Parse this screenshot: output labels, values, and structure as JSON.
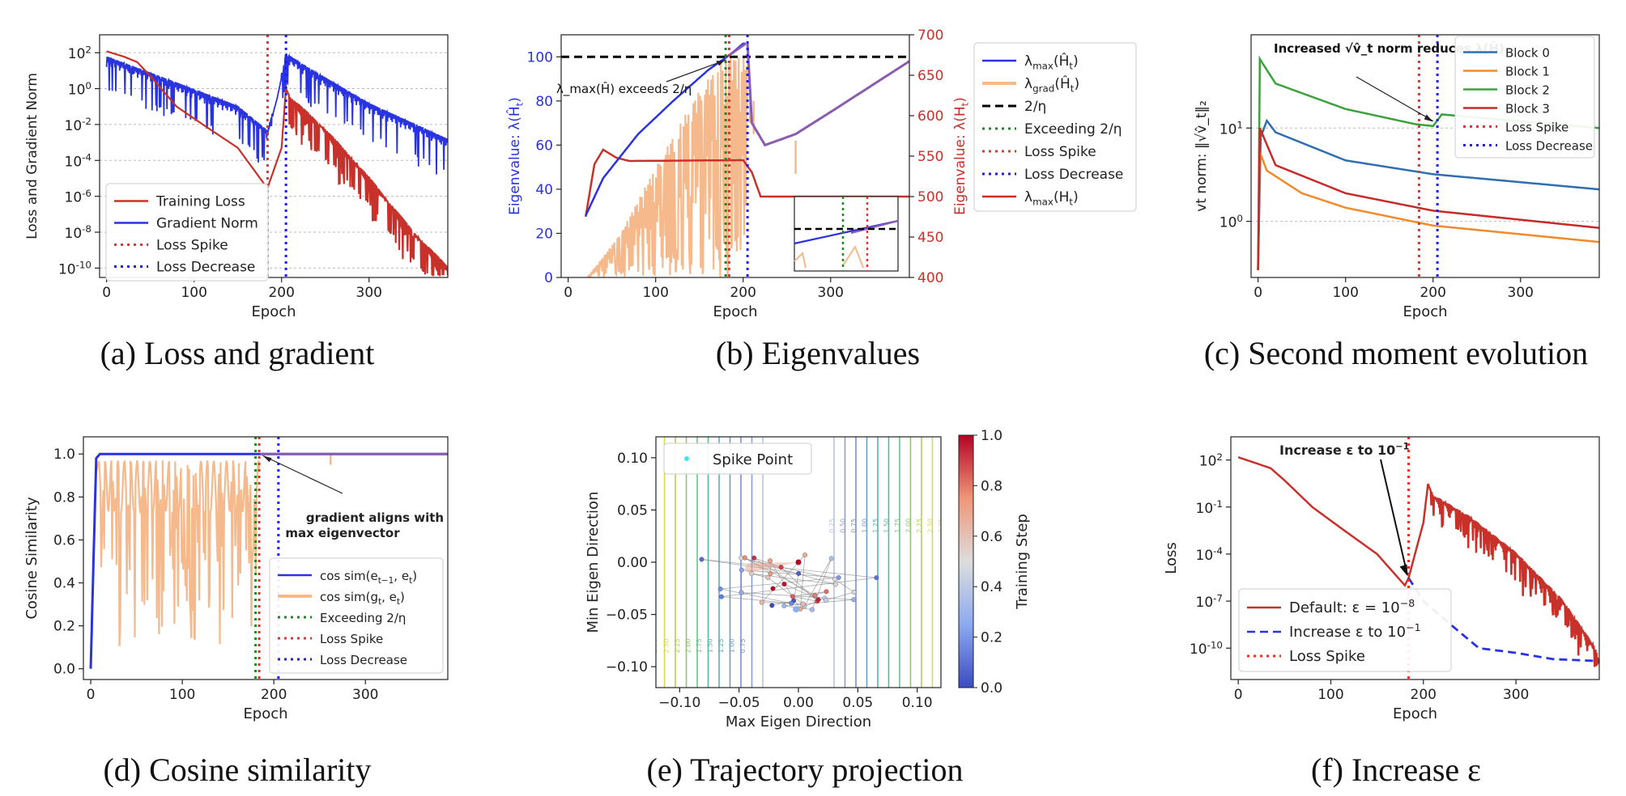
{
  "captions": {
    "a": "(a) Loss and gradient",
    "b": "(b) Eigenvalues",
    "c": "(c) Second moment evolution",
    "d": "(d) Cosine similarity",
    "e": "(e) Trajectory projection",
    "f": "(f) Increase ε"
  },
  "colors": {
    "red": "#c8312a",
    "blue": "#2a33e0",
    "peach": "#f5b98c",
    "purple": "#8a5cb0",
    "green": "#1e8a1e",
    "dotRed": "#e8312a",
    "dotBlue": "#1a1aff",
    "block0": "#2f6fb0",
    "block1": "#f08a2a",
    "block2": "#3aa23a",
    "block3": "#c82a2a"
  },
  "chart_data": [
    {
      "id": "a",
      "type": "line",
      "xlabel": "Epoch",
      "ylabel": "Loss and Gradient Norm",
      "yscale": "log",
      "xlim": [
        -8,
        390
      ],
      "ylim": [
        3e-11,
        1000
      ],
      "xticks": [
        0,
        100,
        200,
        300
      ],
      "yticks": [
        {
          "v": 100,
          "label": "10^2"
        },
        {
          "v": 1,
          "label": "10^0"
        },
        {
          "v": 0.01,
          "label": "10^-2"
        },
        {
          "v": 0.0001,
          "label": "10^-4"
        },
        {
          "v": 1e-06,
          "label": "10^-6"
        },
        {
          "v": 1e-08,
          "label": "10^-8"
        },
        {
          "v": 1e-10,
          "label": "10^-10"
        }
      ],
      "grid": "y",
      "legend_position": "lower-left",
      "legend": [
        "Training Loss",
        "Gradient Norm",
        "Loss Spike",
        "Loss Decrease"
      ],
      "training_loss_keypoints": [
        [
          0,
          120
        ],
        [
          20,
          60
        ],
        [
          35,
          30
        ],
        [
          50,
          5
        ],
        [
          80,
          0.1
        ],
        [
          110,
          0.01
        ],
        [
          150,
          0.0005
        ],
        [
          180,
          5e-06
        ],
        [
          184,
          3e-06
        ],
        [
          200,
          0.0005
        ],
        [
          205,
          1
        ],
        [
          210,
          0.3
        ],
        [
          250,
          0.005
        ],
        [
          300,
          1e-05
        ],
        [
          350,
          1e-08
        ],
        [
          390,
          1e-10
        ]
      ],
      "gradient_norm_keypoints": [
        [
          0,
          40
        ],
        [
          50,
          5
        ],
        [
          100,
          0.6
        ],
        [
          150,
          0.07
        ],
        [
          184,
          0.003
        ],
        [
          195,
          0.3
        ],
        [
          205,
          60
        ],
        [
          230,
          10
        ],
        [
          300,
          0.1
        ],
        [
          390,
          0.001
        ]
      ],
      "vlines": [
        {
          "x": 184,
          "label": "Loss Spike"
        },
        {
          "x": 205,
          "label": "Loss Decrease"
        }
      ]
    },
    {
      "id": "b",
      "type": "line",
      "xlabel": "Epoch",
      "ylabel": "Eigenvalue: λ(Ĥ_t)",
      "ylabel_right": "Eigenvalue: λ(H_t)",
      "xlim": [
        -8,
        390
      ],
      "ylim": [
        0,
        110
      ],
      "ylim_right": [
        400,
        700
      ],
      "xticks": [
        0,
        100,
        200,
        300
      ],
      "yticks": [
        0,
        20,
        40,
        60,
        80,
        100
      ],
      "yticks_right": [
        400,
        450,
        500,
        550,
        600,
        650,
        700
      ],
      "threshold": 100,
      "lambda_max_hat_keypoints": [
        [
          20,
          28
        ],
        [
          40,
          45
        ],
        [
          80,
          65
        ],
        [
          120,
          80
        ],
        [
          160,
          94
        ],
        [
          185,
          101
        ],
        [
          200,
          106
        ],
        [
          203,
          106
        ]
      ],
      "lambda_max_hat_purple_keypoints": [
        [
          185,
          101
        ],
        [
          203,
          106
        ]
      ],
      "lambda_max_H_keypoints": [
        [
          20,
          475
        ],
        [
          30,
          540
        ],
        [
          40,
          558
        ],
        [
          55,
          548
        ],
        [
          70,
          544
        ],
        [
          200,
          545
        ],
        [
          210,
          530
        ],
        [
          220,
          500
        ],
        [
          390,
          500
        ]
      ],
      "post_decrease_keypoints": [
        [
          205,
          106
        ],
        [
          210,
          70
        ],
        [
          225,
          60
        ],
        [
          260,
          65
        ],
        [
          300,
          75
        ],
        [
          390,
          98
        ]
      ],
      "annotation": "λ_max(Ĥ) exceeds 2/η",
      "legend_position": "outside-right",
      "legend": [
        "λ_max(Ĥ_t)",
        "λ_grad(Ĥ_t)",
        "2/η",
        "Exceeding 2/η",
        "Loss Spike",
        "Loss Decrease",
        "λ_max(H_t)"
      ],
      "vlines": [
        {
          "x": 180,
          "label": "Exceeding 2/η"
        },
        {
          "x": 184,
          "label": "Loss Spike"
        },
        {
          "x": 205,
          "label": "Loss Decrease"
        }
      ]
    },
    {
      "id": "c",
      "type": "line",
      "xlabel": "Epoch",
      "ylabel": "vt norm: ‖√v̂_t‖₂",
      "yscale": "log",
      "xlim": [
        -8,
        390
      ],
      "ylim": [
        0.25,
        100
      ],
      "xticks": [
        0,
        100,
        200,
        300
      ],
      "yticks": [
        {
          "v": 1,
          "label": "10^0"
        },
        {
          "v": 10,
          "label": "10^1"
        }
      ],
      "series": [
        {
          "name": "Block 0",
          "keypoints": [
            [
              0,
              0.3
            ],
            [
              3,
              8
            ],
            [
              10,
              12
            ],
            [
              20,
              9
            ],
            [
              100,
              4.5
            ],
            [
              200,
              3.2
            ],
            [
              390,
              2.2
            ]
          ]
        },
        {
          "name": "Block 1",
          "keypoints": [
            [
              0,
              0.3
            ],
            [
              2,
              5.5
            ],
            [
              10,
              3.5
            ],
            [
              50,
              2
            ],
            [
              100,
              1.4
            ],
            [
              200,
              0.9
            ],
            [
              390,
              0.6
            ]
          ]
        },
        {
          "name": "Block 2",
          "keypoints": [
            [
              0,
              0.3
            ],
            [
              2,
              55
            ],
            [
              20,
              30
            ],
            [
              100,
              16
            ],
            [
              180,
              11
            ],
            [
              200,
              10.5
            ],
            [
              210,
              14
            ],
            [
              390,
              10
            ]
          ]
        },
        {
          "name": "Block 3",
          "keypoints": [
            [
              0,
              0.3
            ],
            [
              2,
              10
            ],
            [
              20,
              4
            ],
            [
              100,
              2
            ],
            [
              200,
              1.3
            ],
            [
              390,
              0.85
            ]
          ]
        }
      ],
      "annotation": "Increased √v̂_t norm reduces λ(Ĥ)",
      "legend_position": "top-right",
      "legend": [
        "Block 0",
        "Block 1",
        "Block 2",
        "Block 3",
        "Loss Spike",
        "Loss Decrease"
      ],
      "vlines": [
        {
          "x": 184,
          "label": "Loss Spike"
        },
        {
          "x": 205,
          "label": "Loss Decrease"
        }
      ]
    },
    {
      "id": "d",
      "type": "line",
      "xlabel": "Epoch",
      "ylabel": "Cosine Similarity",
      "xlim": [
        -8,
        390
      ],
      "ylim": [
        -0.05,
        1.08
      ],
      "xticks": [
        0,
        100,
        200,
        300
      ],
      "yticks": [
        0.0,
        0.2,
        0.4,
        0.6,
        0.8,
        1.0
      ],
      "cos_e_keypoints": [
        [
          0,
          0
        ],
        [
          3,
          0.5
        ],
        [
          6,
          0.98
        ],
        [
          10,
          1.0
        ],
        [
          390,
          1.0
        ]
      ],
      "annotation": "gradient aligns with max eigenvector",
      "legend_position": "lower-right",
      "legend": [
        "cos sim(e_{t−1}, e_t)",
        "cos sim(g_t, e_t)",
        "Exceeding 2/η",
        "Loss Spike",
        "Loss Decrease"
      ],
      "vlines": [
        {
          "x": 180,
          "label": "Exceeding 2/η"
        },
        {
          "x": 184,
          "label": "Loss Spike"
        },
        {
          "x": 205,
          "label": "Loss Decrease"
        }
      ]
    },
    {
      "id": "e",
      "type": "scatter",
      "xlabel": "Max Eigen Direction",
      "ylabel": "Min Eigen Direction",
      "xlim": [
        -0.12,
        0.12
      ],
      "ylim": [
        -0.12,
        0.12
      ],
      "xticks": [
        -0.1,
        -0.05,
        0.0,
        0.05,
        0.1
      ],
      "yticks": [
        -0.1,
        -0.05,
        0.0,
        0.05,
        0.1
      ],
      "xtick_labels": [
        "−0.10",
        "−0.05",
        "0.00",
        "0.05",
        "0.10"
      ],
      "ytick_labels": [
        "−0.10",
        "−0.05",
        "0.00",
        "0.05",
        "0.10"
      ],
      "colorbar_label": "Training Step",
      "colorbar_ticks": [
        "0.0",
        "0.2",
        "0.4",
        "0.6",
        "0.8",
        "1.0"
      ],
      "legend": [
        "Spike Point"
      ],
      "contour_levels_right": [
        "0.25",
        "0.50",
        "0.75",
        "1.00",
        "1.25",
        "1.50",
        "1.75",
        "2.00",
        "2.25",
        "2.50",
        "2.75"
      ],
      "contour_levels_left": [
        "0.75",
        "1.00",
        "1.25",
        "1.50",
        "1.75",
        "2.00",
        "2.25",
        "2.50",
        "2.75",
        "3.00"
      ]
    },
    {
      "id": "f",
      "type": "line",
      "xlabel": "Epoch",
      "ylabel": "Loss",
      "yscale": "log",
      "xlim": [
        -8,
        390
      ],
      "ylim": [
        1e-12,
        3000
      ],
      "xticks": [
        0,
        100,
        200,
        300
      ],
      "yticks": [
        {
          "v": 100,
          "label": "10^2"
        },
        {
          "v": 0.1,
          "label": "10^-1"
        },
        {
          "v": 0.0001,
          "label": "10^-4"
        },
        {
          "v": 1e-07,
          "label": "10^-7"
        },
        {
          "v": 1e-10,
          "label": "10^-10"
        }
      ],
      "default_keypoints": [
        [
          0,
          150
        ],
        [
          20,
          60
        ],
        [
          35,
          30
        ],
        [
          50,
          5
        ],
        [
          80,
          0.1
        ],
        [
          110,
          0.005
        ],
        [
          150,
          0.0001
        ],
        [
          180,
          1e-06
        ],
        [
          184,
          3e-06
        ],
        [
          200,
          0.01
        ],
        [
          205,
          3
        ],
        [
          210,
          0.5
        ],
        [
          250,
          0.02
        ],
        [
          300,
          0.0001
        ],
        [
          350,
          1e-07
        ],
        [
          385,
          1e-10
        ],
        [
          390,
          1e-11
        ]
      ],
      "increase_eps_keypoints": [
        [
          184,
          3e-06
        ],
        [
          200,
          1e-07
        ],
        [
          230,
          3e-09
        ],
        [
          260,
          1e-10
        ],
        [
          300,
          5e-11
        ],
        [
          340,
          2e-11
        ],
        [
          390,
          1.5e-11
        ]
      ],
      "annotation": "Increase ε to 10^−1",
      "legend_position": "lower-left",
      "legend": [
        "Default: ε = 10^−8",
        "Increase ε to 10^−1",
        "Loss Spike"
      ],
      "vlines": [
        {
          "x": 184,
          "label": "Loss Spike"
        }
      ]
    }
  ]
}
